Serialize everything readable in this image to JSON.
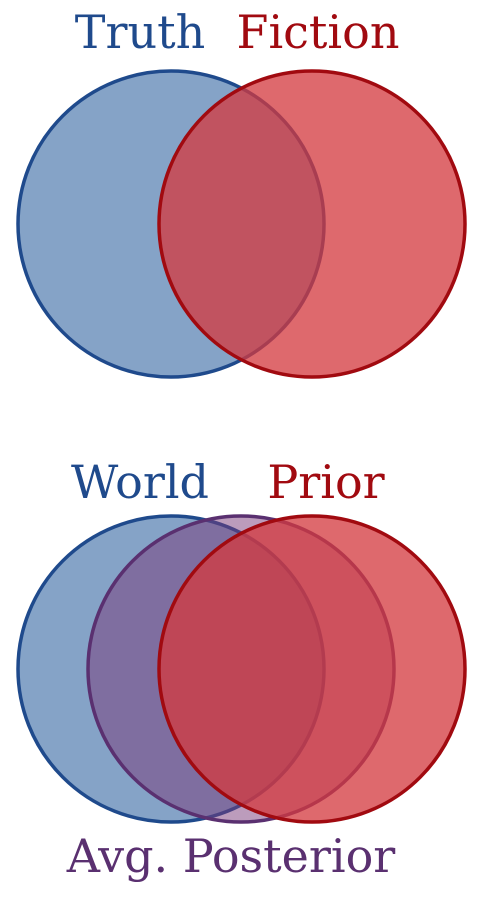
{
  "diagram1": {
    "left_label": "Truth",
    "right_label": "Fiction"
  },
  "diagram2": {
    "left_label": "World",
    "right_label": "Prior",
    "bottom_label": "Avg. Posterior"
  },
  "colors": {
    "blue_fill": "#85a3c7",
    "blue_stroke": "#1f4a8c",
    "red_fill": "#e0686a",
    "red_stroke": "#a10a10",
    "purple_fill": "#8e5a8a",
    "purple_stroke": "#5a3070",
    "blue_text": "#1f4a8c",
    "red_text": "#a10a10",
    "purple_text": "#5a3070"
  }
}
